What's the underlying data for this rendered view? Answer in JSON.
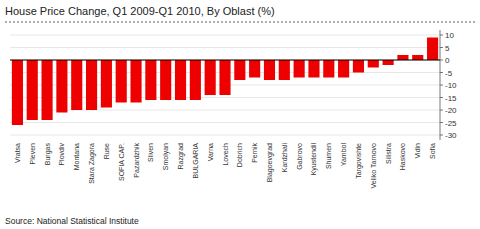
{
  "chart_data": {
    "type": "bar",
    "title": "House Price Change, Q1 2009-Q1 2010, By Oblast (%)",
    "source": "Source: National Statistical Institute",
    "categories": [
      "Vratsa",
      "Pleven",
      "Burgas",
      "Plovdiv",
      "Montana",
      "Stara Zagora",
      "Ruse",
      "SOFIA CAP.",
      "Pazardzhik",
      "Sliven",
      "Smolyan",
      "Razgrad",
      "BULGARIA",
      "Varna",
      "Lovech",
      "Dobrich",
      "Pernik",
      "Blagoevgrad",
      "Kardzhali",
      "Gabrovo",
      "Kyustendil",
      "Shumen",
      "Yambol",
      "Targovishte",
      "Veliko Tarnovo",
      "Silistra",
      "Haskovo",
      "Vidin",
      "Sofia"
    ],
    "values": [
      -26,
      -24,
      -24,
      -21,
      -20,
      -20,
      -19,
      -17,
      -17,
      -16,
      -16,
      -16,
      -16,
      -14,
      -14,
      -8,
      -7,
      -8,
      -8,
      -7,
      -7,
      -7,
      -7,
      -5,
      -3,
      -2,
      2,
      2,
      9
    ],
    "color": "#ee0000",
    "ylim": [
      -32,
      12
    ],
    "yticks": [
      10,
      5,
      0,
      -5,
      -10,
      -15,
      -20,
      -25,
      -30
    ],
    "grid": true
  }
}
